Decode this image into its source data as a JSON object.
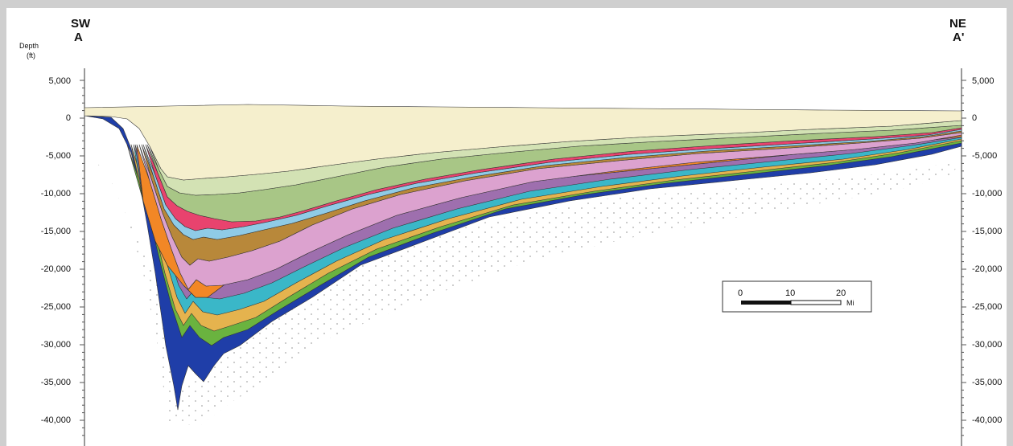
{
  "labels": {
    "sw": "SW",
    "a": "A",
    "ne": "NE",
    "a_prime": "A'",
    "depth": "Depth",
    "unit": "(ft)"
  },
  "depth_ticks": [
    "5,000",
    "0",
    "-5,000",
    "-10,000",
    "-15,000",
    "-20,000",
    "-25,000",
    "-30,000",
    "-35,000",
    "-40,000"
  ],
  "scale_bar": {
    "ticks": [
      "0",
      "10",
      "20"
    ],
    "unit": "Mi"
  },
  "colors": {
    "frame": "#cfcfcf",
    "sediment_top": "#f5efcd",
    "greens_light": "#d3e2b4",
    "greens": "#a8c686",
    "magenta": "#e8436e",
    "cyan": "#8fcbe6",
    "brown": "#b8883a",
    "pink": "#dca2cf",
    "orange": "#f28726",
    "purple": "#9e6fae",
    "teal": "#3ab7c8",
    "yellow": "#e5b34e",
    "green": "#6ab33f",
    "basement": "#1f3ea8"
  }
}
